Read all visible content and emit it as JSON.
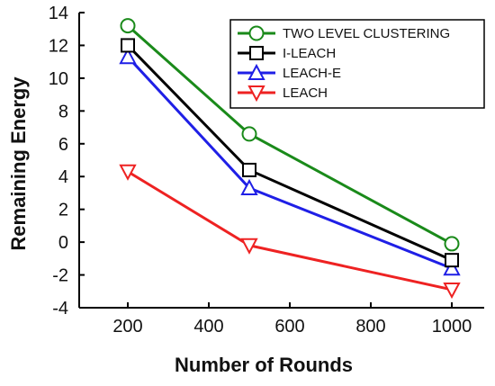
{
  "chart_data": {
    "type": "line",
    "title": "",
    "xlabel": "Number of Rounds",
    "ylabel": "Remaining Energy",
    "x": [
      200,
      500,
      1000
    ],
    "xlim": [
      80,
      1080
    ],
    "ylim": [
      -4,
      14
    ],
    "xticks": [
      200,
      400,
      600,
      800,
      1000
    ],
    "yticks": [
      -4,
      -2,
      0,
      2,
      4,
      6,
      8,
      10,
      12,
      14
    ],
    "grid": false,
    "legend_position": "top-right",
    "series": [
      {
        "name": "TWO LEVEL CLUSTERING",
        "color": "#1a8a1a",
        "marker": "circle",
        "values": [
          13.2,
          6.6,
          -0.1
        ]
      },
      {
        "name": "I-LEACH",
        "color": "#000000",
        "marker": "square",
        "values": [
          12.0,
          4.4,
          -1.1
        ]
      },
      {
        "name": "LEACH-E",
        "color": "#1f1fe6",
        "marker": "triangle-up",
        "values": [
          11.3,
          3.3,
          -1.6
        ]
      },
      {
        "name": "LEACH",
        "color": "#ee2222",
        "marker": "triangle-down",
        "values": [
          4.3,
          -0.2,
          -2.9
        ]
      }
    ]
  }
}
